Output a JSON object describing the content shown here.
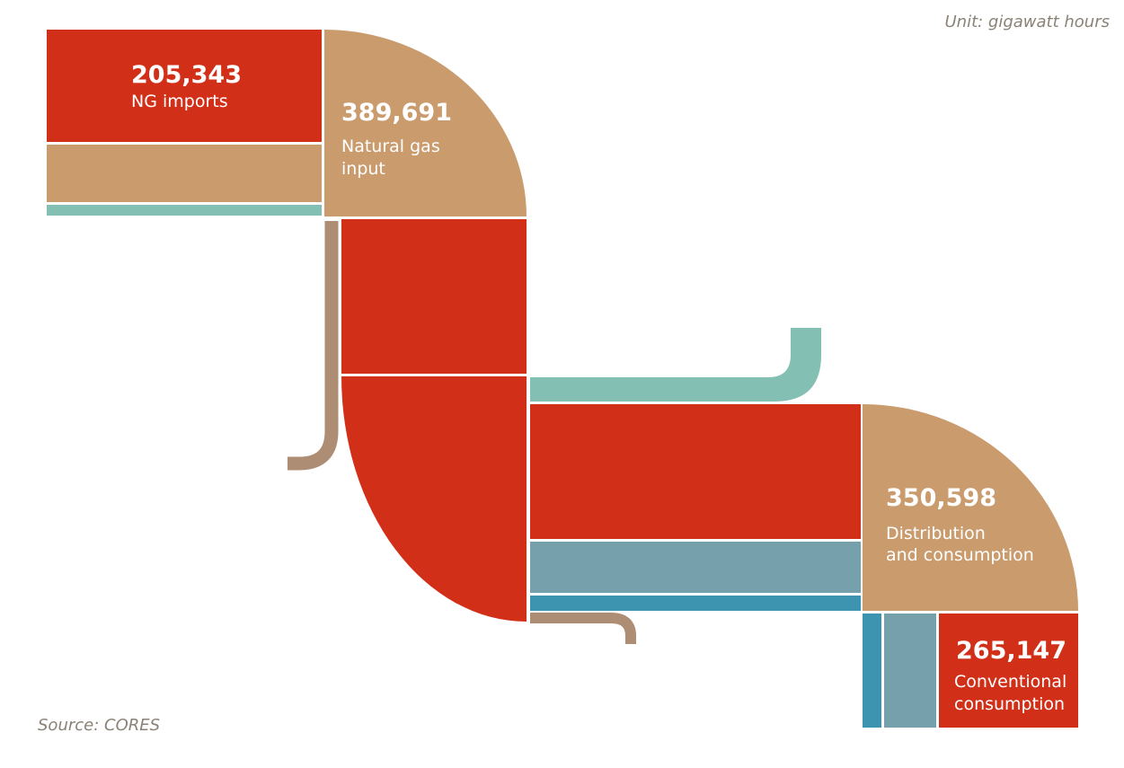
{
  "header": {
    "unit": "Unit: gigawatt hours"
  },
  "footer": {
    "source": "Source: CORES"
  },
  "colors": {
    "imports": "#d12f18",
    "natural_gas": "#c99b6d",
    "teal_light": "#83bfb3",
    "steel_blue": "#77a0ad",
    "blue": "#3d94b0",
    "pipe_brown": "#ad8d73",
    "separator": "#ffffff"
  },
  "labels": {
    "ng_imports": {
      "value": "205,343",
      "lines": [
        "NG imports"
      ]
    },
    "natural_gas_input": {
      "value": "389,691",
      "lines": [
        "Natural gas",
        "input"
      ]
    },
    "distribution": {
      "value": "350,598",
      "lines": [
        "Distribution",
        "and consumption"
      ]
    },
    "conventional": {
      "value": "265,147",
      "lines": [
        "Conventional",
        "consumption"
      ]
    }
  }
}
